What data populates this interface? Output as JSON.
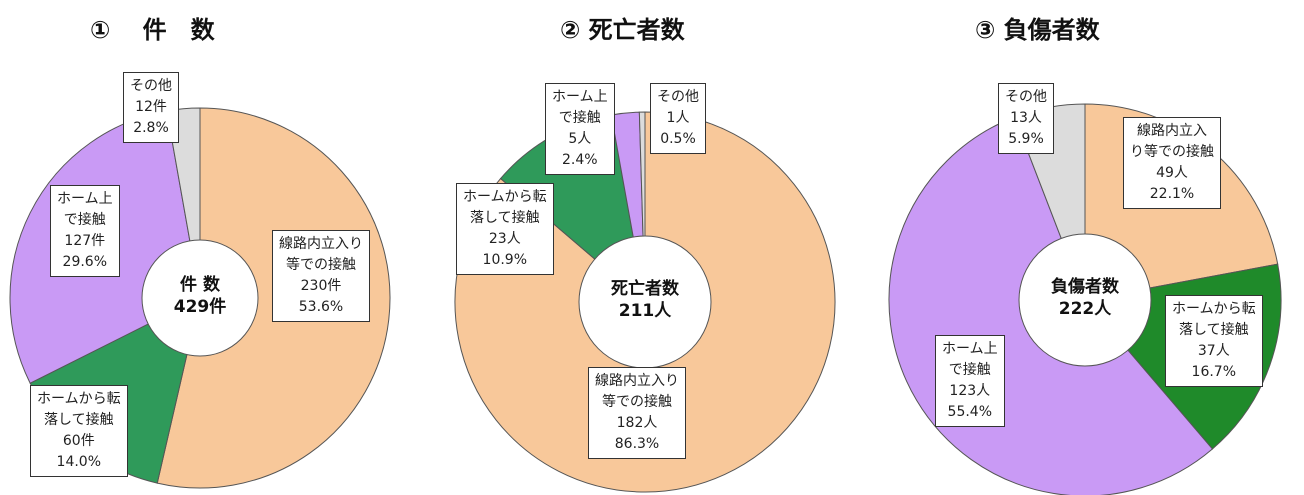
{
  "chart_data": [
    {
      "type": "pie",
      "title": "①　 件　数",
      "center_title": "件 数",
      "center_value": "429件",
      "categories": [
        "線路内立入り\n等での接触",
        "ホームから転\n落して接触",
        "ホーム上\nで接触",
        "その他"
      ],
      "values": [
        230,
        60,
        127,
        12
      ],
      "value_labels": [
        "230件",
        "60件",
        "127件",
        "12件"
      ],
      "percent_labels": [
        "53.6%",
        "14.0%",
        "29.6%",
        "2.8%"
      ],
      "colors": [
        "#f8c89a",
        "#2f9a5a",
        "#c99af5",
        "#dcdcdc"
      ]
    },
    {
      "type": "pie",
      "title": "② 死亡者数",
      "center_title": "死亡者数",
      "center_value": "211人",
      "categories": [
        "線路内立入り\n等での接触",
        "ホームから転\n落して接触",
        "ホーム上\nで接触",
        "その他"
      ],
      "values": [
        182,
        23,
        5,
        1
      ],
      "value_labels": [
        "182人",
        "23人",
        "5人",
        "1人"
      ],
      "percent_labels": [
        "86.3%",
        "10.9%",
        "2.4%",
        "0.5%"
      ],
      "colors": [
        "#f8c89a",
        "#2f9a5a",
        "#c99af5",
        "#dcdcdc"
      ]
    },
    {
      "type": "pie",
      "title": "③ 負傷者数",
      "center_title": "負傷者数",
      "center_value": "222人",
      "categories": [
        "線路内立入\nり等での接触",
        "ホームから転\n落して接触",
        "ホーム上\nで接触",
        "その他"
      ],
      "values": [
        49,
        37,
        123,
        13
      ],
      "value_labels": [
        "49人",
        "37人",
        "123人",
        "13人"
      ],
      "percent_labels": [
        "22.1%",
        "16.7%",
        "55.4%",
        "5.9%"
      ],
      "colors": [
        "#f8c89a",
        "#1f8a2a",
        "#c99af5",
        "#dcdcdc"
      ]
    }
  ]
}
